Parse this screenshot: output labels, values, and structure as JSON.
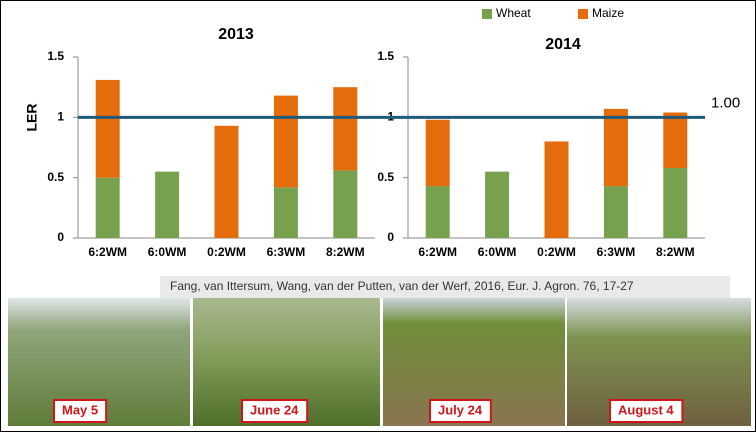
{
  "legend": [
    {
      "name": "Wheat",
      "color": "#77a14c"
    },
    {
      "name": "Maize",
      "color": "#e46c0a"
    }
  ],
  "chart_data": [
    {
      "type": "bar",
      "stacked": true,
      "title": "2013",
      "y_label": "LER",
      "categories": [
        "6:2WM",
        "6:0WM",
        "0:2WM",
        "6:3WM",
        "8:2WM"
      ],
      "series": [
        {
          "values": [
            0.5,
            0.55,
            null,
            0.42,
            0.56
          ]
        },
        {
          "values": [
            0.81,
            null,
            0.93,
            0.76,
            0.69
          ]
        }
      ],
      "ylim": [
        0,
        1.5
      ],
      "yticks": [
        0,
        0.5,
        1,
        1.5
      ],
      "reference_line": {
        "value": 1,
        "label": "1.00",
        "color": "#1f5a7a"
      }
    },
    {
      "type": "bar",
      "stacked": true,
      "title": "2014",
      "categories": [
        "6:2WM",
        "6:0WM",
        "0:2WM",
        "6:3WM",
        "8:2WM"
      ],
      "series": [
        {
          "values": [
            0.43,
            0.55,
            null,
            0.43,
            0.58
          ]
        },
        {
          "values": [
            0.55,
            null,
            0.8,
            0.64,
            0.46
          ]
        }
      ],
      "ylim": [
        0,
        1.5
      ],
      "yticks": [
        0,
        0.5,
        1,
        1.5
      ]
    }
  ],
  "citation": "Fang, van Ittersum, Wang, van der Putten, van der Werf, 2016, Eur. J. Agron. 76, 17-27",
  "photos": [
    "May 5",
    "June 24",
    "July 24",
    "August 4"
  ]
}
